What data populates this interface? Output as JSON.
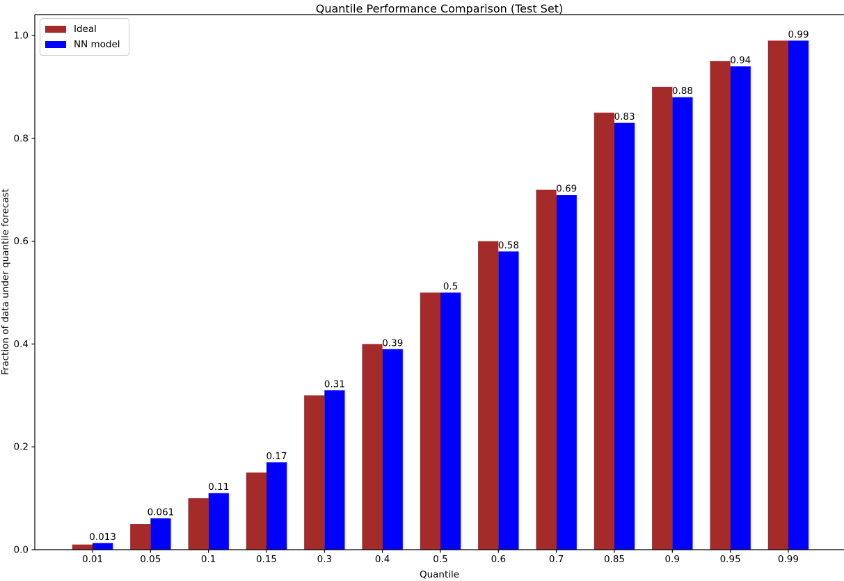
{
  "figure": {
    "title": "Quantile Performance Comparison (Test Set)",
    "xlabel": "Quantile",
    "ylabel": "Fraction of data under quantile forecast"
  },
  "legend": {
    "items": [
      {
        "label": "Ideal",
        "color": "#A52A2A"
      },
      {
        "label": "NN model",
        "color": "#0000FF"
      }
    ]
  },
  "chart_data": {
    "type": "bar",
    "title": "Quantile Performance Comparison (Test Set)",
    "xlabel": "Quantile",
    "ylabel": "Fraction of data under quantile forecast",
    "categories": [
      "0.01",
      "0.05",
      "0.1",
      "0.15",
      "0.3",
      "0.4",
      "0.5",
      "0.6",
      "0.7",
      "0.85",
      "0.9",
      "0.95",
      "0.99"
    ],
    "series": [
      {
        "name": "Ideal",
        "color": "#A52A2A",
        "values": [
          0.01,
          0.05,
          0.1,
          0.15,
          0.3,
          0.4,
          0.5,
          0.6,
          0.7,
          0.85,
          0.9,
          0.95,
          0.99
        ]
      },
      {
        "name": "NN model",
        "color": "#0000FF",
        "values": [
          0.013,
          0.061,
          0.11,
          0.17,
          0.31,
          0.39,
          0.5,
          0.58,
          0.69,
          0.83,
          0.88,
          0.94,
          0.99
        ]
      }
    ],
    "bar_labels": [
      "0.013",
      "0.061",
      "0.11",
      "0.17",
      "0.31",
      "0.39",
      "0.5",
      "0.58",
      "0.69",
      "0.83",
      "0.88",
      "0.94",
      "0.99"
    ],
    "bar_label_series": "NN model",
    "yticks": [
      "0.0",
      "0.2",
      "0.4",
      "0.6",
      "0.8",
      "1.0"
    ],
    "ylim": [
      0,
      1.04
    ],
    "grid": false,
    "legend_position": "upper left"
  }
}
